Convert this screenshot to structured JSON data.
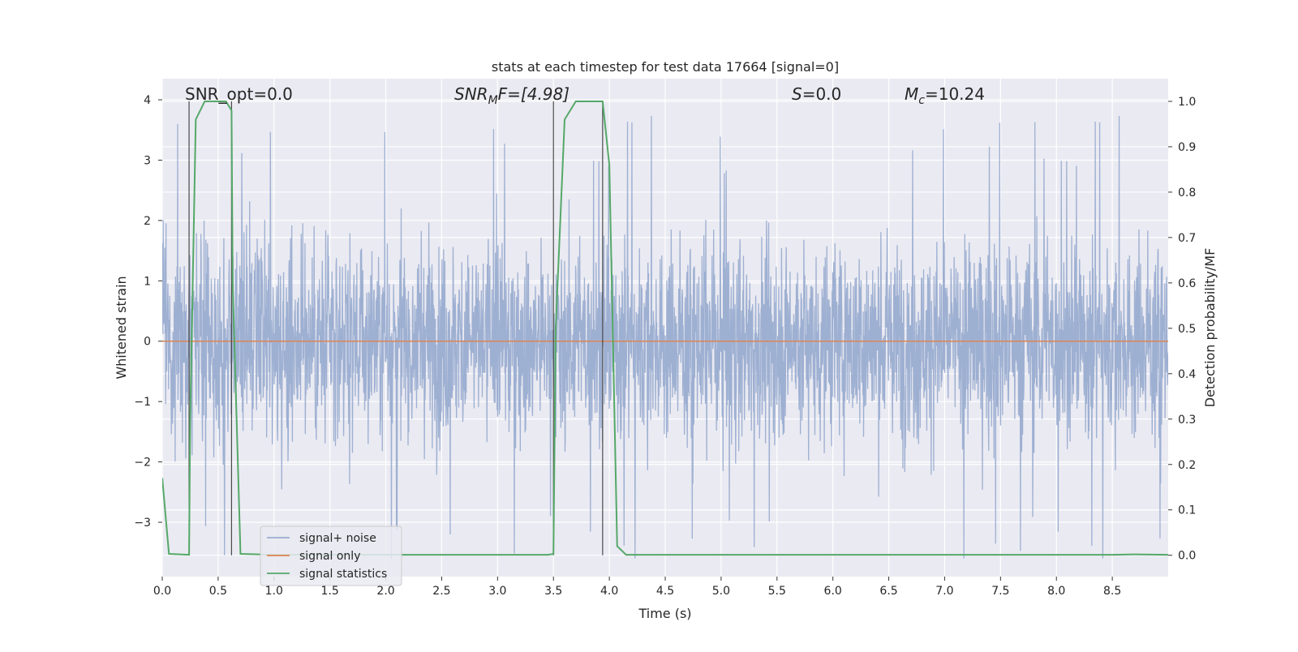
{
  "chart_data": {
    "type": "line",
    "title": "stats at each timestep for test data 17664 [signal=0]",
    "xlabel": "Time (s)",
    "ylabel": "Whitened strain",
    "ylabel_right": "Detection probability/MF",
    "xlim": [
      0.0,
      9.0
    ],
    "ylim": [
      -3.9,
      4.35
    ],
    "ylim_right": [
      -0.047,
      1.05
    ],
    "x_ticks": [
      "0.0",
      "0.5",
      "1.0",
      "1.5",
      "2.0",
      "2.5",
      "3.0",
      "3.5",
      "4.0",
      "4.5",
      "5.0",
      "5.5",
      "6.0",
      "6.5",
      "7.0",
      "7.5",
      "8.0",
      "8.5"
    ],
    "y_ticks": [
      "4",
      "3",
      "2",
      "1",
      "0",
      "−1",
      "−2",
      "−3"
    ],
    "y_ticks_right": [
      "1.0",
      "0.9",
      "0.8",
      "0.7",
      "0.6",
      "0.5",
      "0.4",
      "0.3",
      "0.2",
      "0.1",
      "0.0"
    ],
    "grid": true,
    "legend_position": "lower-left",
    "annotations": {
      "snr_opt": "SNR_opt=0.0",
      "snr_mf_base": "SNR",
      "snr_mf_sub": "M",
      "snr_mf_rest": "F=[4.98]",
      "s_var": "S",
      "s_rest": "=0.0",
      "mc_var": "M",
      "mc_sub": "c",
      "mc_rest": "=10.24"
    },
    "vertical_markers": [
      0.24,
      0.62,
      3.5,
      3.94
    ],
    "series": [
      {
        "name": "signal+ noise",
        "axis": "left",
        "color": "#9aadd0",
        "description": "dense whitened strain noise, approx ±2 with spikes to ±3.8",
        "envelope": [
          -2.2,
          2.6
        ],
        "extremes": [
          -3.6,
          4.0
        ]
      },
      {
        "name": "signal only",
        "axis": "left",
        "color": "#dd8452",
        "x": [
          0.0,
          9.0
        ],
        "y": [
          0.0,
          0.0
        ]
      },
      {
        "name": "signal statistics",
        "axis": "right",
        "color": "#55a868",
        "x": [
          0.0,
          0.06,
          0.24,
          0.25,
          0.3,
          0.38,
          0.5,
          0.57,
          0.62,
          0.63,
          0.7,
          1.0,
          2.0,
          3.0,
          3.45,
          3.5,
          3.52,
          3.6,
          3.7,
          3.85,
          3.94,
          4.0,
          4.07,
          4.15,
          5.0,
          6.0,
          7.0,
          8.0,
          8.5,
          8.7,
          9.0
        ],
        "y": [
          0.17,
          0.003,
          0.001,
          0.3,
          0.96,
          1.0,
          1.0,
          1.0,
          0.98,
          0.6,
          0.003,
          0.001,
          0.001,
          0.001,
          0.001,
          0.003,
          0.5,
          0.96,
          1.0,
          1.0,
          1.0,
          0.86,
          0.02,
          0.001,
          0.001,
          0.001,
          0.001,
          0.001,
          0.001,
          0.002,
          0.001
        ]
      }
    ]
  }
}
